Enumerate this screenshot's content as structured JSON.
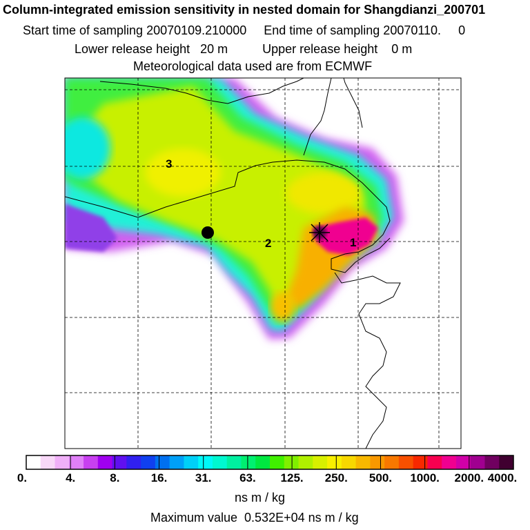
{
  "header": {
    "title": "Column-integrated emission sensitivity in nested domain for Shangdianzi_200701",
    "line2": "Start time of sampling 20070109.210000     End time of sampling 20070110.     0",
    "line3": "Lower release height   20 m          Upper release height    0 m",
    "line4": "Meteorological data used are from ECMWF"
  },
  "map": {
    "markers": [
      {
        "id": "1",
        "label": "1"
      },
      {
        "id": "2",
        "label": "2"
      },
      {
        "id": "3",
        "label": "3"
      }
    ],
    "station_symbol": "star-icon",
    "point_symbol": "filled-circle-icon"
  },
  "colorbar": {
    "labels": [
      "0.",
      "4.",
      "8.",
      "16.",
      "31.",
      "63.",
      "125.",
      "250.",
      "500.",
      "1000.",
      "2000.",
      "4000."
    ],
    "colors": [
      "#ffffff",
      "#f8d8f8",
      "#f0b0f8",
      "#e080f8",
      "#c840f0",
      "#a000f0",
      "#6010f0",
      "#3020f0",
      "#1040f0",
      "#0070f0",
      "#00a0f8",
      "#00d0f8",
      "#00f8f8",
      "#00f8d0",
      "#00f0a0",
      "#00f070",
      "#00e840",
      "#40f000",
      "#80f000",
      "#b0f000",
      "#d8f000",
      "#f8f000",
      "#f8d800",
      "#f8b800",
      "#f89800",
      "#f87800",
      "#f85000",
      "#f82800",
      "#f80050",
      "#f00090",
      "#d000a8",
      "#a00090",
      "#700060",
      "#400030"
    ],
    "unit": "ns m / kg"
  },
  "footer": {
    "max_value": "Maximum value  0.532E+04 ns m / kg"
  }
}
